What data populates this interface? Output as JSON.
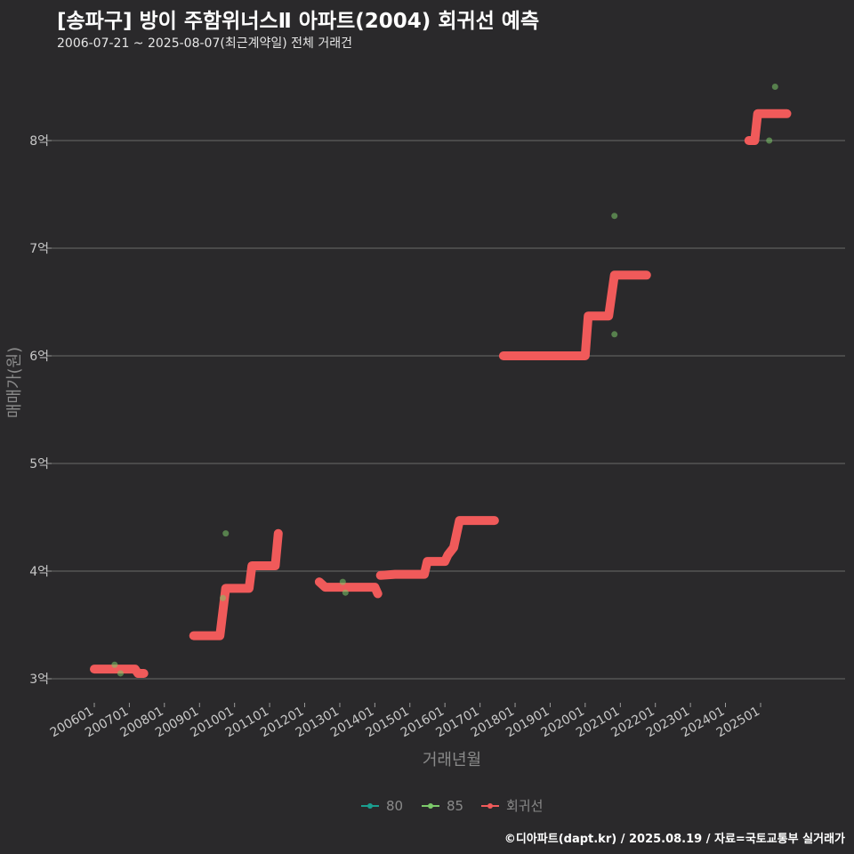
{
  "header": {
    "title": "[송파구] 방이 주함위너스Ⅱ 아파트(2004) 회귀선 예측",
    "subtitle": "2006-07-21 ~ 2025-08-07(최근계약일) 전체 거래건"
  },
  "footer": {
    "credit": "©디아파트(dapt.kr) / 2025.08.19 / 자료=국토교통부 실거래가"
  },
  "colors": {
    "background": "#2a292b",
    "grid": "#6a6a6a",
    "series_80": "#1a9e8f",
    "series_85": "#7cc96a",
    "regression": "#f05a5a"
  },
  "chart_data": {
    "type": "scatter",
    "xlabel": "거래년월",
    "ylabel": "매매가(원)",
    "x_type": "date",
    "y_unit": "억",
    "ylim": [
      2.95,
      8.7
    ],
    "xlim": [
      "2005-06-01",
      "2026-06-01"
    ],
    "grid": "horizontal",
    "legend_position": "bottom",
    "y_ticks": [
      {
        "value": 3,
        "label": "3억"
      },
      {
        "value": 4,
        "label": "4억"
      },
      {
        "value": 5,
        "label": "5억"
      },
      {
        "value": 6,
        "label": "6억"
      },
      {
        "value": 7,
        "label": "7억"
      },
      {
        "value": 8,
        "label": "8억"
      }
    ],
    "x_ticks": [
      {
        "value": "2006-01",
        "label": "200601"
      },
      {
        "value": "2007-01",
        "label": "200701"
      },
      {
        "value": "2008-01",
        "label": "200801"
      },
      {
        "value": "2009-01",
        "label": "200901"
      },
      {
        "value": "2010-01",
        "label": "201001"
      },
      {
        "value": "2011-01",
        "label": "201101"
      },
      {
        "value": "2012-01",
        "label": "201201"
      },
      {
        "value": "2013-01",
        "label": "201301"
      },
      {
        "value": "2014-01",
        "label": "201401"
      },
      {
        "value": "2015-01",
        "label": "201501"
      },
      {
        "value": "2016-01",
        "label": "201601"
      },
      {
        "value": "2017-01",
        "label": "201701"
      },
      {
        "value": "2018-01",
        "label": "201801"
      },
      {
        "value": "2019-01",
        "label": "201901"
      },
      {
        "value": "2020-01",
        "label": "202001"
      },
      {
        "value": "2021-01",
        "label": "202101"
      },
      {
        "value": "2022-01",
        "label": "202201"
      },
      {
        "value": "2023-01",
        "label": "202301"
      },
      {
        "value": "2024-01",
        "label": "202401"
      },
      {
        "value": "2025-01",
        "label": "202501"
      }
    ],
    "legend": [
      {
        "key": "80",
        "label": "80"
      },
      {
        "key": "85",
        "label": "85"
      },
      {
        "key": "regression",
        "label": "회귀선"
      }
    ],
    "series": [
      {
        "name": "85",
        "key": "85",
        "points": [
          {
            "x": "2006-08",
            "y": 3.13
          },
          {
            "x": "2006-10",
            "y": 3.05
          },
          {
            "x": "2009-09",
            "y": 3.75
          },
          {
            "x": "2009-10",
            "y": 4.35
          },
          {
            "x": "2013-02",
            "y": 3.9
          },
          {
            "x": "2013-03",
            "y": 3.8
          },
          {
            "x": "2020-11",
            "y": 7.3
          },
          {
            "x": "2020-11",
            "y": 6.2
          },
          {
            "x": "2025-04",
            "y": 8.0
          },
          {
            "x": "2025-06",
            "y": 8.5
          }
        ]
      },
      {
        "name": "회귀선",
        "key": "regression",
        "segments": [
          [
            [
              "2006-01",
              3.09
            ],
            [
              "2007-03",
              3.09
            ],
            [
              "2007-04",
              3.05
            ],
            [
              "2007-06",
              3.05
            ]
          ],
          [
            [
              "2008-11",
              3.4
            ],
            [
              "2009-08",
              3.4
            ],
            [
              "2009-10",
              3.84
            ],
            [
              "2010-06",
              3.84
            ],
            [
              "2010-07",
              4.05
            ],
            [
              "2011-03",
              4.05
            ],
            [
              "2011-04",
              4.35
            ]
          ],
          [
            [
              "2012-06",
              3.9
            ],
            [
              "2012-08",
              3.85
            ],
            [
              "2014-01",
              3.85
            ],
            [
              "2014-02",
              3.79
            ]
          ],
          [
            [
              "2014-03",
              3.96
            ],
            [
              "2014-08",
              3.97
            ],
            [
              "2015-06",
              3.97
            ],
            [
              "2015-07",
              4.09
            ],
            [
              "2016-01",
              4.09
            ],
            [
              "2016-02",
              4.15
            ],
            [
              "2016-04",
              4.22
            ],
            [
              "2016-06",
              4.47
            ],
            [
              "2017-06",
              4.47
            ]
          ],
          [
            [
              "2017-09",
              6.0
            ],
            [
              "2020-01",
              6.0
            ],
            [
              "2020-02",
              6.37
            ],
            [
              "2020-09",
              6.37
            ],
            [
              "2020-11",
              6.75
            ],
            [
              "2021-10",
              6.75
            ]
          ],
          [
            [
              "2024-09",
              8.0
            ],
            [
              "2024-11",
              8.0
            ],
            [
              "2024-12",
              8.25
            ],
            [
              "2025-10",
              8.25
            ]
          ]
        ]
      }
    ]
  }
}
